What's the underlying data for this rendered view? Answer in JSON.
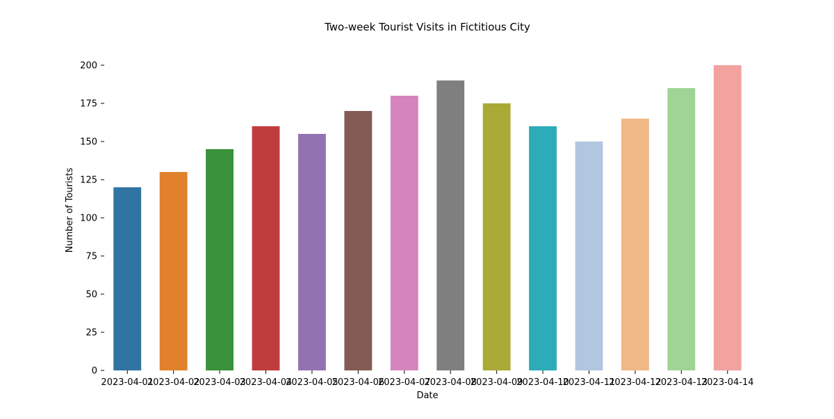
{
  "chart_data": {
    "type": "bar",
    "title": "Two-week Tourist Visits in Fictitious City",
    "xlabel": "Date",
    "ylabel": "Number of Tourists",
    "categories": [
      "2023-04-01",
      "2023-04-02",
      "2023-04-03",
      "2023-04-04",
      "2023-04-05",
      "2023-04-06",
      "2023-04-07",
      "2023-04-08",
      "2023-04-09",
      "2023-04-10",
      "2023-04-11",
      "2023-04-12",
      "2023-04-13",
      "2023-04-14"
    ],
    "values": [
      120,
      130,
      145,
      160,
      155,
      170,
      180,
      190,
      175,
      160,
      150,
      165,
      185,
      200
    ],
    "colors": [
      "#3274a1",
      "#e1812c",
      "#3a923a",
      "#c03d3e",
      "#9372b2",
      "#845b53",
      "#d684bd",
      "#7f7f7f",
      "#a9aa35",
      "#2eabb8",
      "#b3c6e0",
      "#efb886",
      "#9fd495",
      "#f2a29f"
    ],
    "ylim": [
      0,
      210
    ],
    "yticks": [
      0,
      25,
      50,
      75,
      100,
      125,
      150,
      175,
      200
    ],
    "grid": false,
    "legend": "none"
  }
}
